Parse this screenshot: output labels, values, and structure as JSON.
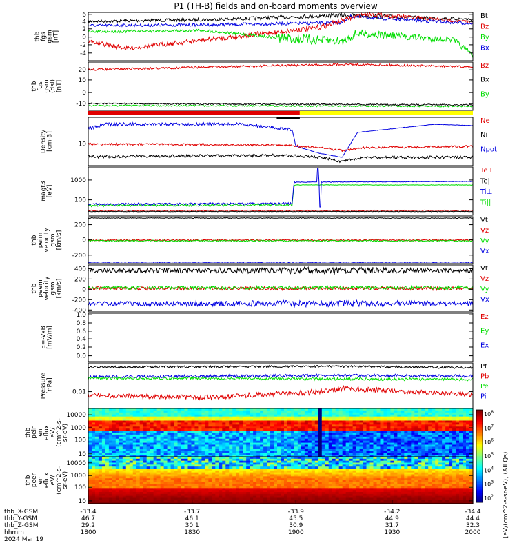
{
  "title": "P1 (TH-B) fields and on-board moments overview",
  "colors": {
    "black": "#000000",
    "red": "#e00000",
    "green": "#00dd00",
    "blue": "#0000e0",
    "yellow": "#ffff00"
  },
  "panels": [
    {
      "key": "fgs",
      "ylabel": [
        "thb",
        "fgs",
        "gsm",
        "[nT]"
      ],
      "ticks": [
        "6",
        "4",
        "2",
        "0",
        "-2",
        "-4"
      ],
      "legend": [
        {
          "t": "Bt",
          "c": "black"
        },
        {
          "t": "Bz",
          "c": "red"
        },
        {
          "t": "By",
          "c": "green"
        },
        {
          "t": "Bx",
          "c": "blue"
        }
      ]
    },
    {
      "key": "fgs_dsl",
      "ylabel": [
        "thb",
        "fgs",
        "gsm",
        "(dsl)",
        "[nT]"
      ],
      "ticks": [
        "20",
        "10",
        "0",
        "-10"
      ],
      "legend": [
        {
          "t": "Bz",
          "c": "red"
        },
        {
          "t": "Bx",
          "c": "black"
        },
        {
          "t": "By",
          "c": "green"
        }
      ]
    },
    {
      "key": "density",
      "ylabel": [
        "Density",
        "[cm-3]"
      ],
      "ticks": [
        "10"
      ],
      "legend": [
        {
          "t": "Ne",
          "c": "red"
        },
        {
          "t": "Ni",
          "c": "black"
        },
        {
          "t": "Npot",
          "c": "blue"
        }
      ]
    },
    {
      "key": "temp",
      "ylabel": [
        "magt3",
        "[eV]"
      ],
      "ticks": [
        "1000",
        "100"
      ],
      "legend": [
        {
          "t": "Te⊥",
          "c": "red"
        },
        {
          "t": "Te||",
          "c": "black"
        },
        {
          "t": "Ti⊥",
          "c": "blue"
        },
        {
          "t": "Ti||",
          "c": "green"
        }
      ]
    },
    {
      "key": "peim",
      "ylabel": [
        "thb",
        "peim",
        "velocity",
        "gsm",
        "[km/s]"
      ],
      "ticks": [
        "200",
        "0",
        "-200"
      ],
      "legend": [
        {
          "t": "Vt",
          "c": "black"
        },
        {
          "t": "Vz",
          "c": "red"
        },
        {
          "t": "Vy",
          "c": "green"
        },
        {
          "t": "Vx",
          "c": "blue"
        }
      ]
    },
    {
      "key": "peem",
      "ylabel": [
        "thb",
        "peem",
        "velocity",
        "gsm",
        "[km/s]"
      ],
      "ticks": [
        "400",
        "200",
        "0",
        "-200",
        "-400"
      ],
      "legend": [
        {
          "t": "Vt",
          "c": "black"
        },
        {
          "t": "Vz",
          "c": "red"
        },
        {
          "t": "Vy",
          "c": "green"
        },
        {
          "t": "Vx",
          "c": "blue"
        }
      ]
    },
    {
      "key": "efield",
      "ylabel": [
        "E=-VxB",
        "[mV/m]"
      ],
      "ticks": [
        "1.0",
        "0.8",
        "0.6",
        "0.4",
        "0.2",
        "0.0"
      ],
      "legend": [
        {
          "t": "Ez",
          "c": "red"
        },
        {
          "t": "Ey",
          "c": "green"
        },
        {
          "t": "Ex",
          "c": "blue"
        }
      ]
    },
    {
      "key": "pressure",
      "ylabel": [
        "Pressure",
        "[nPa]"
      ],
      "ticks": [
        "0.01"
      ],
      "legend": [
        {
          "t": "Pt",
          "c": "black"
        },
        {
          "t": "Pb",
          "c": "red"
        },
        {
          "t": "Pe",
          "c": "green"
        },
        {
          "t": "Pi",
          "c": "blue"
        }
      ]
    },
    {
      "key": "peir",
      "ylabel": [
        "thb",
        "peir",
        "en",
        "eflux",
        "eV/",
        "(cm^2-s-",
        "sr-eV)"
      ],
      "ticks": [
        "10000",
        "1000",
        "100",
        "10"
      ],
      "legend": []
    },
    {
      "key": "peer",
      "ylabel": [
        "thb",
        "peer",
        "en",
        "eflux",
        "eV/",
        "(cm^2-s-",
        "sr-eV)"
      ],
      "ticks": [
        "10000",
        "1000",
        "100",
        "10"
      ],
      "legend": []
    }
  ],
  "colorbar": {
    "ticks": [
      "10^8",
      "10^7",
      "10^6",
      "10^5",
      "10^4",
      "10^3",
      "10^2"
    ],
    "label": "[eV/(cm^2-s-sr-eV)] (All Qs)"
  },
  "xaxis": {
    "rows": [
      {
        "label": "thb_X-GSM",
        "values": [
          "-33.4",
          "-33.7",
          "-33.9",
          "-34.2",
          "-34.4"
        ]
      },
      {
        "label": "thb_Y-GSM",
        "values": [
          "46.7",
          "46.1",
          "45.5",
          "44.9",
          "44.4"
        ]
      },
      {
        "label": "thb_Z-GSM",
        "values": [
          "29.2",
          "30.1",
          "30.9",
          "31.7",
          "32.3"
        ]
      },
      {
        "label": "hhmm",
        "values": [
          "1800",
          "1830",
          "1900",
          "1930",
          "2000"
        ]
      }
    ],
    "date": "2024 Mar 19"
  },
  "chart_data": {
    "type": "line",
    "title": "P1 (TH-B) fields and on-board moments overview",
    "x_ticks": [
      "1800",
      "1830",
      "1900",
      "1930",
      "2000"
    ],
    "series_approx": {
      "fgs": {
        "Bt": [
          4.5,
          4.3,
          4.5,
          5.5,
          4.0
        ],
        "Bz": [
          0.0,
          1.0,
          2.5,
          5.0,
          3.0
        ],
        "By": [
          2.0,
          2.5,
          2.0,
          0.5,
          -1.5
        ],
        "Bx": [
          3.5,
          3.5,
          3.8,
          4.0,
          3.5
        ]
      },
      "fgs_dsl_Bz": [
        20,
        21,
        22,
        23,
        22
      ],
      "density_Ne": [
        10,
        9,
        9,
        7,
        9
      ],
      "temp_Ti_par_eV": [
        50,
        45,
        45,
        600,
        650
      ],
      "peem_Vt": [
        300,
        300,
        320,
        300,
        300
      ]
    }
  }
}
